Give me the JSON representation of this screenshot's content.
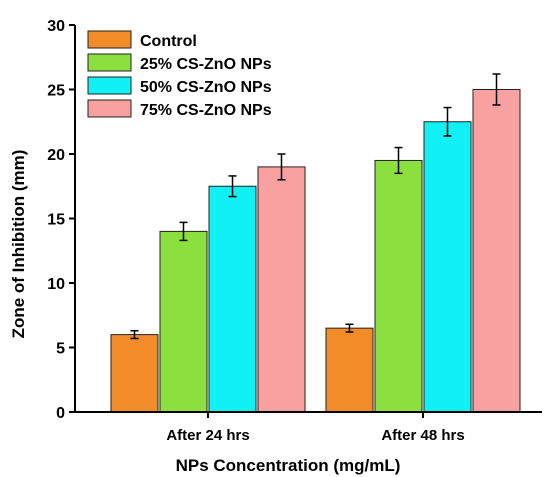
{
  "chart_data": {
    "type": "bar",
    "title": "",
    "xlabel": "NPs Concentration (mg/mL)",
    "ylabel": "Zone of Inhibition (mm)",
    "ylim": [
      0,
      30
    ],
    "yticks": [
      "0",
      "5",
      "10",
      "15",
      "20",
      "25",
      "30"
    ],
    "categories": [
      "After 24 hrs",
      "After 48 hrs"
    ],
    "series": [
      {
        "name": "Control",
        "color": "#F28C28",
        "values": [
          6.0,
          6.5
        ],
        "errors": [
          0.3,
          0.3
        ]
      },
      {
        "name": "25% CS-ZnO NPs",
        "color": "#8BE03F",
        "values": [
          14.0,
          19.5
        ],
        "errors": [
          0.7,
          1.0
        ]
      },
      {
        "name": "50% CS-ZnO NPs",
        "color": "#10F0F5",
        "values": [
          17.5,
          22.5
        ],
        "errors": [
          0.8,
          1.1
        ]
      },
      {
        "name": "75% CS-ZnO NPs",
        "color": "#F9A0A0",
        "values": [
          19.0,
          25.0
        ],
        "errors": [
          1.0,
          1.2
        ]
      }
    ],
    "legend_position": "top-left",
    "grid": false
  }
}
